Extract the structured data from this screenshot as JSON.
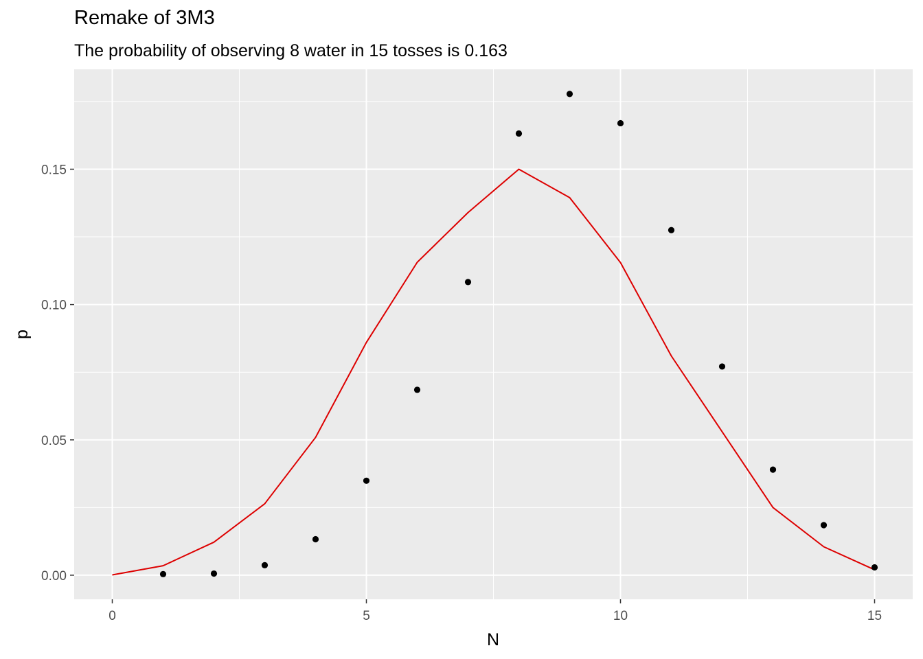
{
  "chart_data": {
    "type": "scatter",
    "title": "Remake of 3M3",
    "subtitle": "The probability of observing 8 water in 15 tosses is 0.163",
    "xlabel": "N",
    "ylabel": "p",
    "xlim": [
      -0.75,
      15.75
    ],
    "ylim": [
      -0.0089,
      0.1869
    ],
    "x_ticks": [
      0,
      5,
      10,
      15
    ],
    "x_tick_labels": [
      "0",
      "5",
      "10",
      "15"
    ],
    "y_ticks": [
      0.0,
      0.05,
      0.1,
      0.15
    ],
    "y_tick_labels": [
      "0.00",
      "0.05",
      "0.10",
      "0.15"
    ],
    "grid": true,
    "colors": {
      "panel": "#ebebeb",
      "grid": "#ffffff",
      "points": "#000000",
      "line": "#dd0000"
    },
    "series": [
      {
        "kind": "points",
        "x": [
          1,
          2,
          3,
          4,
          5,
          6,
          7,
          8,
          9,
          10,
          11,
          12,
          13,
          14,
          15
        ],
        "y": [
          0.0004,
          0.0006,
          0.0037,
          0.0133,
          0.0349,
          0.0685,
          0.1083,
          0.1632,
          0.1778,
          0.167,
          0.1275,
          0.0771,
          0.039,
          0.0185,
          0.0029
        ]
      },
      {
        "kind": "line",
        "x": [
          0,
          1,
          2,
          3,
          4,
          5,
          6,
          7,
          8,
          9,
          10,
          11,
          13,
          14,
          15
        ],
        "y": [
          0.0001,
          0.0035,
          0.0122,
          0.0264,
          0.0509,
          0.086,
          0.1156,
          0.134,
          0.15,
          0.1395,
          0.1155,
          0.081,
          0.025,
          0.0105,
          0.002
        ]
      }
    ]
  }
}
